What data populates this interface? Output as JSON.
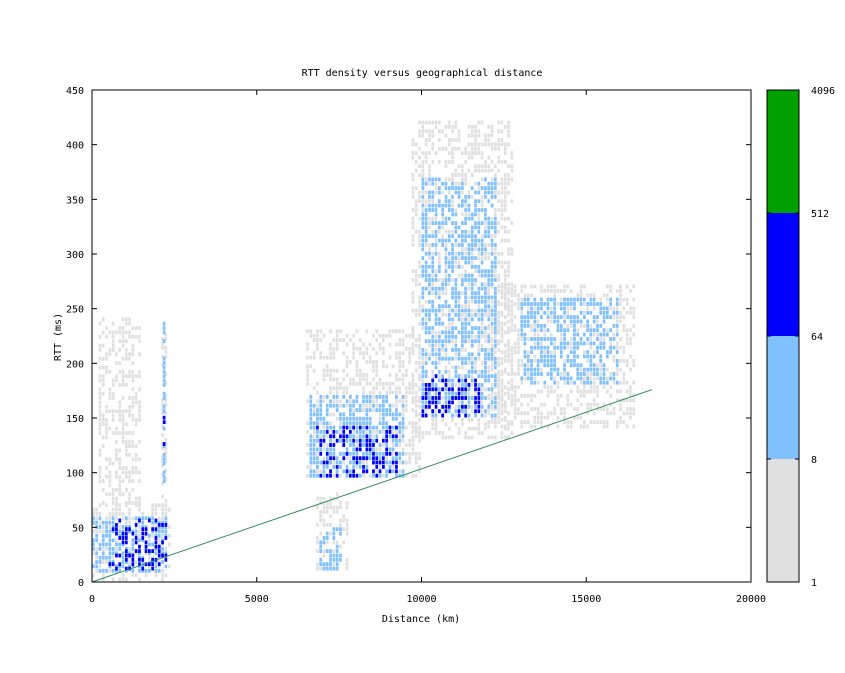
{
  "chart_data": {
    "type": "heatmap",
    "title": "RTT density versus geographical distance",
    "xlabel": "Distance (km)",
    "ylabel": "RTT (ms)",
    "xlim": [
      0,
      20000
    ],
    "ylim": [
      0,
      450
    ],
    "xticks": [
      0,
      5000,
      10000,
      15000,
      20000
    ],
    "yticks": [
      0,
      50,
      100,
      150,
      200,
      250,
      300,
      350,
      400,
      450
    ],
    "colorbar": {
      "scale": "log",
      "tick_labels": [
        "1",
        "8",
        "64",
        "512",
        "4096"
      ],
      "bins": [
        {
          "from": 1,
          "to": 8,
          "color": "#e0e0e0"
        },
        {
          "from": 8,
          "to": 64,
          "color": "#80c0ff"
        },
        {
          "from": 64,
          "to": 512,
          "color": "#0000ff"
        },
        {
          "from": 512,
          "to": 4096,
          "color": "#00a000"
        }
      ]
    },
    "reference_line": {
      "color": "#2e8b57",
      "points": [
        [
          0,
          0
        ],
        [
          17000,
          176
        ]
      ]
    },
    "clusters": [
      {
        "x": [
          0,
          2400
        ],
        "y": [
          0,
          70
        ],
        "level": "light"
      },
      {
        "x": [
          0,
          2300
        ],
        "y": [
          8,
          60
        ],
        "level": "mid"
      },
      {
        "x": [
          500,
          2250
        ],
        "y": [
          10,
          55
        ],
        "level": "high"
      },
      {
        "x": [
          2100,
          2300
        ],
        "y": [
          40,
          245
        ],
        "level": "light"
      },
      {
        "x": [
          2150,
          2250
        ],
        "y": [
          90,
          240
        ],
        "level": "mid"
      },
      {
        "x": [
          2150,
          2250
        ],
        "y": [
          120,
          150
        ],
        "level": "high"
      },
      {
        "x": [
          6500,
          10000
        ],
        "y": [
          95,
          230
        ],
        "level": "light"
      },
      {
        "x": [
          6600,
          9500
        ],
        "y": [
          95,
          170
        ],
        "level": "mid"
      },
      {
        "x": [
          6800,
          9300
        ],
        "y": [
          95,
          140
        ],
        "level": "high"
      },
      {
        "x": [
          9700,
          12800
        ],
        "y": [
          130,
          420
        ],
        "level": "light"
      },
      {
        "x": [
          10000,
          12300
        ],
        "y": [
          150,
          370
        ],
        "level": "mid"
      },
      {
        "x": [
          10000,
          11800
        ],
        "y": [
          150,
          190
        ],
        "level": "high"
      },
      {
        "x": [
          12000,
          16500
        ],
        "y": [
          140,
          270
        ],
        "level": "light"
      },
      {
        "x": [
          13000,
          16000
        ],
        "y": [
          180,
          260
        ],
        "level": "mid"
      },
      {
        "x": [
          6800,
          7800
        ],
        "y": [
          10,
          80
        ],
        "level": "light"
      },
      {
        "x": [
          6900,
          7600
        ],
        "y": [
          10,
          50
        ],
        "level": "mid"
      },
      {
        "x": [
          200,
          1500
        ],
        "y": [
          70,
          240
        ],
        "level": "light"
      }
    ]
  }
}
